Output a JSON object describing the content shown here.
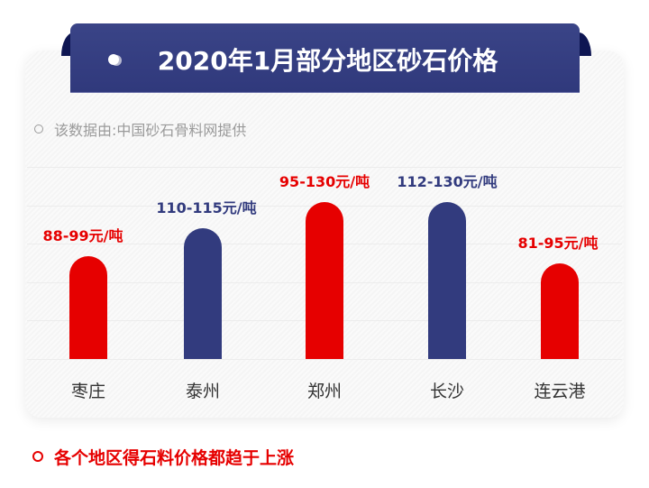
{
  "title": "2020年1月部分地区砂石价格",
  "source_note": "该数据由:中国砂石骨料网提供",
  "footer_note": "各个地区得石料价格都趋于上涨",
  "colors": {
    "red": "#e60000",
    "navy": "#323b7e",
    "banner": "#343e83"
  },
  "chart_data": {
    "type": "bar",
    "categories": [
      "枣庄",
      "泰州",
      "郑州",
      "长沙",
      "连云港"
    ],
    "price_ranges": [
      [
        88,
        99
      ],
      [
        110,
        115
      ],
      [
        95,
        130
      ],
      [
        112,
        130
      ],
      [
        81,
        95
      ]
    ],
    "values": [
      99,
      115,
      130,
      130,
      95
    ],
    "data_labels": [
      "88-99元/吨",
      "110-115元/吨",
      "95-130元/吨",
      "112-130元/吨",
      "81-95元/吨"
    ],
    "bar_colors": [
      "#e60000",
      "#323b7e",
      "#e60000",
      "#323b7e",
      "#e60000"
    ],
    "ylim": [
      40,
      150
    ],
    "unit": "元/吨",
    "grid": true,
    "axes_visible": false
  }
}
